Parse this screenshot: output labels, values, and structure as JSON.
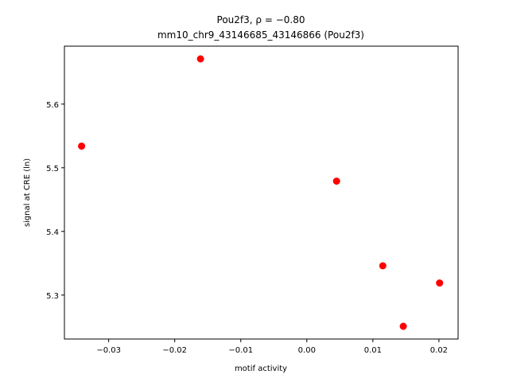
{
  "chart_data": {
    "type": "scatter",
    "title": "Pou2f3, ρ = −0.80",
    "subtitle": "mm10_chr9_43146685_43146866 (Pou2f3)",
    "x_label": "motif activity",
    "y_label": "signal at CRE (ln)",
    "color": "#ff0000",
    "x": [
      -0.0161,
      -0.0341,
      0.0045,
      0.0115,
      0.0201,
      0.0146
    ],
    "values": [
      5.671,
      5.534,
      5.479,
      5.346,
      5.319,
      5.251
    ],
    "xlim": [
      -0.0367,
      0.0229
    ],
    "ylim": [
      5.231,
      5.691
    ],
    "xticks": [
      {
        "value": -0.03,
        "label": "−0.03"
      },
      {
        "value": -0.02,
        "label": "−0.02"
      },
      {
        "value": -0.01,
        "label": "−0.01"
      },
      {
        "value": 0,
        "label": "0.00"
      },
      0.01,
      0.02
    ],
    "yticks": [
      5.3,
      5.4,
      5.5,
      5.6
    ]
  }
}
